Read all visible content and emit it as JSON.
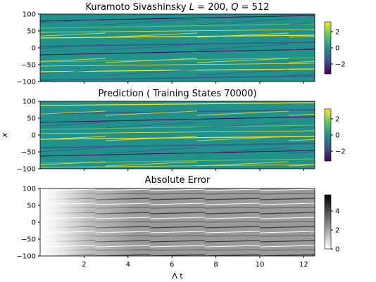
{
  "chart_data": [
    {
      "type": "heatmap",
      "title": "Kuramoto Sivashinsky L = 200, Q = 512",
      "title_parts": {
        "prefix": "Kuramoto Sivashinsky ",
        "L_sym": "L",
        "L_val": " = 200, ",
        "Q_sym": "Q",
        "Q_val": " = 512"
      },
      "ylabel": "",
      "yticks": [
        "100",
        "50",
        "0",
        "−50",
        "−100"
      ],
      "ylim": [
        -100,
        100
      ],
      "xlim": [
        0,
        12.6
      ],
      "colormap": "viridis",
      "colorbar": {
        "ticks": [
          "2",
          "0",
          "−2"
        ],
        "range": [
          -3.3,
          3.3
        ]
      }
    },
    {
      "type": "heatmap",
      "title": "Prediction ( Training States 70000)",
      "ylabel": "x",
      "yticks": [
        "100",
        "50",
        "0",
        "−50",
        "−100"
      ],
      "ylim": [
        -100,
        100
      ],
      "xlim": [
        0,
        12.6
      ],
      "colormap": "viridis",
      "colorbar": {
        "ticks": [
          "2",
          "0",
          "−2"
        ],
        "range": [
          -3.3,
          3.3
        ]
      }
    },
    {
      "type": "heatmap",
      "title": "Absolute Error",
      "ylabel": "",
      "xlabel": "Λ t",
      "yticks": [
        "100",
        "50",
        "0",
        "−50",
        "−100"
      ],
      "xticks": [
        "2",
        "4",
        "6",
        "8",
        "10",
        "12"
      ],
      "ylim": [
        -100,
        100
      ],
      "xlim": [
        0,
        12.6
      ],
      "colormap": "gray_r",
      "colorbar": {
        "ticks": [
          "4",
          "2",
          "0"
        ],
        "range": [
          0,
          6
        ]
      }
    }
  ],
  "colors": {
    "viridis": [
      "#440154",
      "#3b528b",
      "#21918c",
      "#5ec962",
      "#fde725"
    ],
    "greys": [
      "#ffffff",
      "#000000"
    ]
  }
}
